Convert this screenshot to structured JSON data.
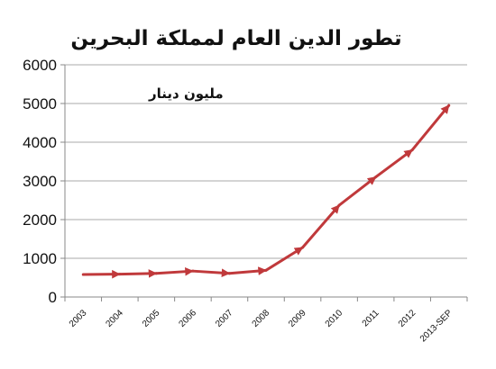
{
  "chart_data": {
    "type": "line",
    "title": "تطور الدين العام لمملكة البحرين",
    "unit_label": "مليون دينار",
    "xlabel": "",
    "ylabel": "",
    "categories": [
      "2003",
      "2004",
      "2005",
      "2006",
      "2007",
      "2008",
      "2009",
      "2010",
      "2011",
      "2012",
      "2013-SEP"
    ],
    "y_ticks": [
      "0",
      "1000",
      "2000",
      "3000",
      "4000",
      "5000",
      "6000"
    ],
    "ylim": [
      0,
      6000
    ],
    "grid": true,
    "legend": "none",
    "series": [
      {
        "color": "#c0393b",
        "values": [
          580,
          590,
          610,
          670,
          610,
          690,
          1280,
          2370,
          3100,
          3800,
          4950
        ]
      }
    ]
  }
}
